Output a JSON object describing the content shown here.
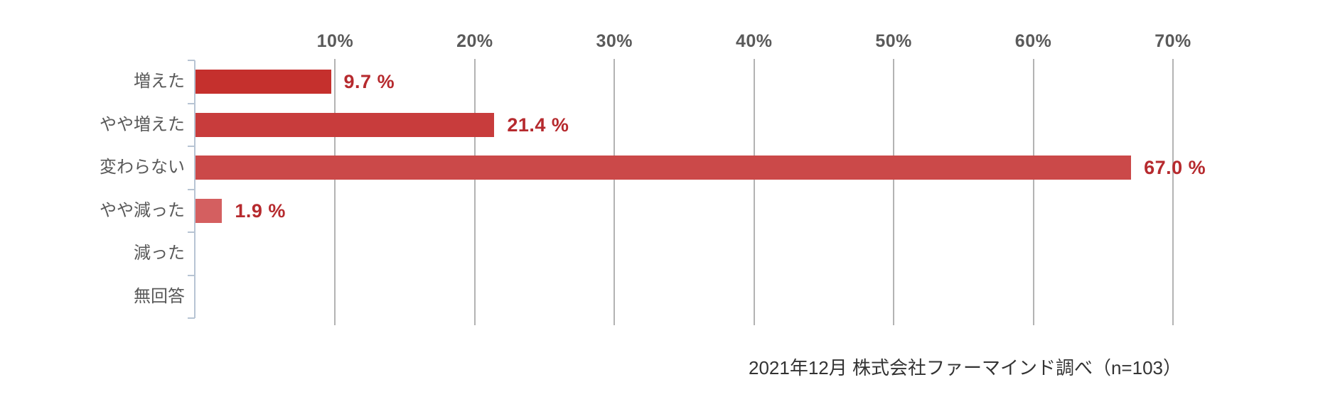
{
  "chart_data": {
    "type": "bar",
    "orientation": "horizontal",
    "categories": [
      "増えた",
      "やや増えた",
      "変わらない",
      "やや減った",
      "減った",
      "無回答"
    ],
    "values": [
      9.7,
      21.4,
      67.0,
      1.9,
      0,
      0
    ],
    "value_labels": [
      "9.7 %",
      "21.4 %",
      "67.0 %",
      "1.9 %",
      "",
      ""
    ],
    "bar_colors": [
      "#c5302d",
      "#c83c3c",
      "#cb4949",
      "#d45f60",
      "#d97070",
      "#e08888"
    ],
    "x_tick_labels": [
      "10%",
      "20%",
      "30%",
      "40%",
      "50%",
      "60%",
      "70%"
    ],
    "x_tick_values": [
      10,
      20,
      30,
      40,
      50,
      60,
      70
    ],
    "xlim": [
      0,
      70
    ],
    "grid": true,
    "legend": false,
    "source_note": "2021年12月 株式会社ファーマインド調べ（n=103）"
  },
  "colors": {
    "value_label": "#b62a2e",
    "category_label": "#595959",
    "tick_label": "#5a5a5a",
    "gridline": "#b3b3b3",
    "axis_line": "#b7c4d3",
    "source_note": "#333333",
    "background": "#ffffff"
  }
}
